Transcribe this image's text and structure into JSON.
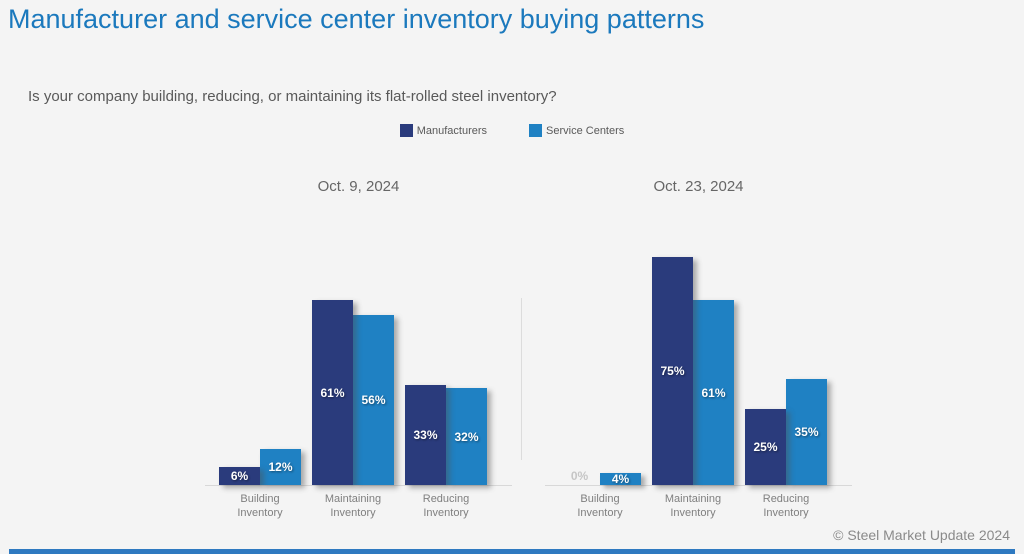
{
  "page": {
    "title": "Manufacturer and service center inventory buying patterns",
    "subtitle": "Is your company building, reducing, or maintaining its flat-rolled steel inventory?",
    "footer": "© Steel Market Update 2024"
  },
  "legend": {
    "items": [
      {
        "label": "Manufacturers",
        "color": "#2a3b7c"
      },
      {
        "label": "Service Centers",
        "color": "#1f81c3"
      }
    ]
  },
  "colors": {
    "background": "#f4f4f4",
    "title": "#1b79bd",
    "subtitle": "#595959",
    "panel_title": "#666666",
    "axis_line": "#d8d8d8",
    "divider": "#dcdcdc",
    "category_label": "#7f7f7f",
    "bar_label": "#ffffff",
    "zero_label": "#c6c6c6",
    "footer": "#8a8a8a",
    "bottom_bar": "#2e79c0"
  },
  "chart_data": [
    {
      "type": "bar",
      "title": "Oct. 9, 2024",
      "categories": [
        "Building Inventory",
        "Maintaining Inventory",
        "Reducing Inventory"
      ],
      "series": [
        {
          "name": "Manufacturers",
          "values": [
            6,
            61,
            33
          ]
        },
        {
          "name": "Service Centers",
          "values": [
            12,
            56,
            32
          ]
        }
      ],
      "unit": "%",
      "ylim": [
        0,
        80
      ],
      "grid": false,
      "data_labels": "inside-white",
      "legend_position": "top-center"
    },
    {
      "type": "bar",
      "title": "Oct. 23, 2024",
      "categories": [
        "Building Inventory",
        "Maintaining Inventory",
        "Reducing Inventory"
      ],
      "series": [
        {
          "name": "Manufacturers",
          "values": [
            0,
            75,
            25
          ]
        },
        {
          "name": "Service Centers",
          "values": [
            4,
            61,
            35
          ]
        }
      ],
      "unit": "%",
      "ylim": [
        0,
        80
      ],
      "grid": false,
      "data_labels": "inside-white",
      "legend_position": "top-center"
    }
  ]
}
